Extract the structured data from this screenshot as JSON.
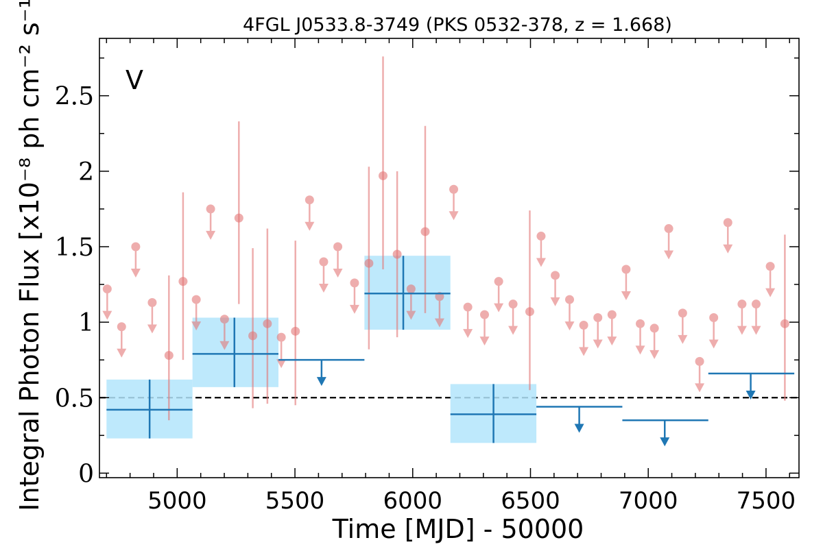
{
  "chart_data": {
    "type": "scatter",
    "title": "4FGL J0533.8-3749 (PKS 0532-378, z = 1.668)",
    "xlabel": "Time [MJD] - 50000",
    "ylabel": "Integral Photon Flux [x10⁻⁸ ph cm⁻² s⁻¹]",
    "band_label": "V",
    "xlim": [
      4670,
      7640
    ],
    "ylim": [
      -0.03,
      2.88
    ],
    "x_ticks": [
      5000,
      5500,
      6000,
      6500,
      7000,
      7500
    ],
    "x_tick_labels": [
      "5000",
      "5500",
      "6000",
      "6500",
      "7000",
      "7500"
    ],
    "y_ticks": [
      0,
      0.5,
      1,
      1.5,
      2,
      2.5
    ],
    "y_tick_labels": [
      "0",
      "0.5",
      "1",
      "1.5",
      "2",
      "2.5"
    ],
    "reference_line": {
      "y": 0.5,
      "style": "dashed",
      "color": "#000000"
    },
    "colors": {
      "monthly": "#e37777",
      "binned": "#1f77b4",
      "binned_fill": "#b3e5fc"
    },
    "monthly_detections": [
      {
        "x": 4965,
        "y": 0.78,
        "lo": 0.35,
        "hi": 1.31
      },
      {
        "x": 5025,
        "y": 1.27,
        "lo": 0.75,
        "hi": 1.86
      },
      {
        "x": 5262,
        "y": 1.69,
        "lo": 1.12,
        "hi": 2.33
      },
      {
        "x": 5321,
        "y": 0.91,
        "lo": 0.43,
        "hi": 1.49
      },
      {
        "x": 5383,
        "y": 0.99,
        "lo": 0.46,
        "hi": 1.62
      },
      {
        "x": 5502,
        "y": 0.94,
        "lo": 0.45,
        "hi": 1.54
      },
      {
        "x": 5814,
        "y": 1.39,
        "lo": 0.82,
        "hi": 2.03
      },
      {
        "x": 5874,
        "y": 1.97,
        "lo": 1.35,
        "hi": 2.76
      },
      {
        "x": 5934,
        "y": 1.45,
        "lo": 0.9,
        "hi": 2.0
      },
      {
        "x": 6053,
        "y": 1.6,
        "lo": 1.06,
        "hi": 2.3
      },
      {
        "x": 6497,
        "y": 1.07,
        "lo": 0.55,
        "hi": 1.74
      },
      {
        "x": 7580,
        "y": 0.99,
        "lo": 0.48,
        "hi": 1.58
      }
    ],
    "monthly_upper_limits": [
      {
        "x": 4703,
        "y": 1.22
      },
      {
        "x": 4764,
        "y": 0.97
      },
      {
        "x": 4824,
        "y": 1.5
      },
      {
        "x": 4894,
        "y": 1.13
      },
      {
        "x": 5081,
        "y": 1.15
      },
      {
        "x": 5142,
        "y": 1.75
      },
      {
        "x": 5201,
        "y": 1.02
      },
      {
        "x": 5442,
        "y": 0.9
      },
      {
        "x": 5562,
        "y": 1.81
      },
      {
        "x": 5622,
        "y": 1.4
      },
      {
        "x": 5682,
        "y": 1.5
      },
      {
        "x": 5753,
        "y": 1.26
      },
      {
        "x": 5993,
        "y": 1.22
      },
      {
        "x": 6114,
        "y": 1.17
      },
      {
        "x": 6174,
        "y": 1.88
      },
      {
        "x": 6234,
        "y": 1.1
      },
      {
        "x": 6305,
        "y": 1.05
      },
      {
        "x": 6365,
        "y": 1.27
      },
      {
        "x": 6426,
        "y": 1.12
      },
      {
        "x": 6545,
        "y": 1.57
      },
      {
        "x": 6605,
        "y": 1.31
      },
      {
        "x": 6666,
        "y": 1.15
      },
      {
        "x": 6726,
        "y": 0.98
      },
      {
        "x": 6786,
        "y": 1.03
      },
      {
        "x": 6846,
        "y": 1.05
      },
      {
        "x": 6906,
        "y": 1.35
      },
      {
        "x": 6966,
        "y": 0.99
      },
      {
        "x": 7026,
        "y": 0.96
      },
      {
        "x": 7087,
        "y": 1.62
      },
      {
        "x": 7146,
        "y": 1.06
      },
      {
        "x": 7218,
        "y": 0.74
      },
      {
        "x": 7278,
        "y": 1.03
      },
      {
        "x": 7338,
        "y": 1.66
      },
      {
        "x": 7398,
        "y": 1.12
      },
      {
        "x": 7458,
        "y": 1.12
      },
      {
        "x": 7518,
        "y": 1.37
      }
    ],
    "binned_detections": [
      {
        "x_start": 4700,
        "x_end": 5065,
        "x": 4883,
        "y": 0.42,
        "lo": 0.23,
        "hi": 0.62
      },
      {
        "x_start": 5065,
        "x_end": 5430,
        "x": 5243,
        "y": 0.79,
        "lo": 0.57,
        "hi": 1.03
      },
      {
        "x_start": 5795,
        "x_end": 6160,
        "x": 5960,
        "y": 1.19,
        "lo": 0.95,
        "hi": 1.44
      },
      {
        "x_start": 6160,
        "x_end": 6525,
        "x": 6343,
        "y": 0.39,
        "lo": 0.2,
        "hi": 0.59
      }
    ],
    "binned_upper_limits": [
      {
        "x_start": 5430,
        "x_end": 5795,
        "x": 5613,
        "y": 0.75
      },
      {
        "x_start": 6525,
        "x_end": 6890,
        "x": 6707,
        "y": 0.44
      },
      {
        "x_start": 6890,
        "x_end": 7255,
        "x": 7070,
        "y": 0.35
      },
      {
        "x_start": 7255,
        "x_end": 7620,
        "x": 7435,
        "y": 0.66
      }
    ]
  }
}
